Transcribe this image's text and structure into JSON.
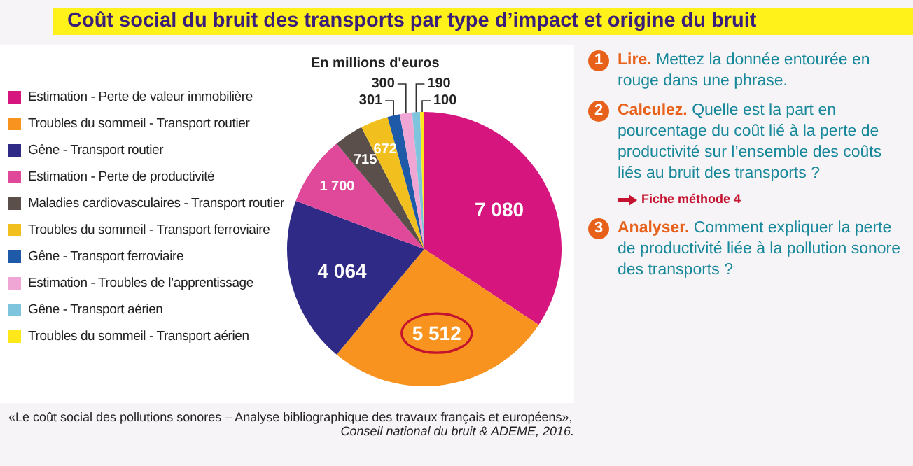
{
  "chart_data": {
    "type": "pie",
    "title": "Coût social du bruit des transports par type d’impact et origine du bruit",
    "subtitle": "En millions d'euros",
    "categories": [
      "Estimation - Perte de valeur immobilière",
      "Troubles du sommeil - Transport routier",
      "Gêne - Transport routier",
      "Estimation - Perte de productivité",
      "Maladies cardiovasculaires - Transport routier",
      "Troubles du sommeil - Transport ferroviaire",
      "Gêne - Transport ferroviaire",
      "Estimation - Troubles de l’apprentissage",
      "Gêne - Transport aérien",
      "Troubles du sommeil - Transport aérien"
    ],
    "values": [
      7080,
      5512,
      4064,
      1700,
      715,
      672,
      301,
      300,
      190,
      100
    ],
    "value_labels": [
      "7 080",
      "5 512",
      "4 064",
      "1 700",
      "715",
      "672",
      "301",
      "300",
      "190",
      "100"
    ],
    "colors": [
      "#d6157f",
      "#f7931e",
      "#2e2a86",
      "#e0489a",
      "#5a4f4a",
      "#f2c01e",
      "#1e5aa8",
      "#f0a6d4",
      "#7ec4dc",
      "#ffe81a"
    ],
    "legend": "left",
    "annotations": [
      "1",
      "Lire.",
      "Mettez la donnée entourée en rouge dans une phrase.",
      "2",
      "Calculez.",
      "Quelle est la part en pourcentage du coût lié à la perte de productivité sur l’ensemble des coûts liés au bruit des transports ?",
      "Fiche méthode 4",
      "3",
      "Analyser.",
      "Comment expliquer la perte de productivité liée à la pollution sonore des transports ?",
      "«Le coût social des pollutions sonores – Analyse bibliographique des travaux français et européens»,",
      "Conseil national du bruit & ADEME, 2016."
    ]
  }
}
